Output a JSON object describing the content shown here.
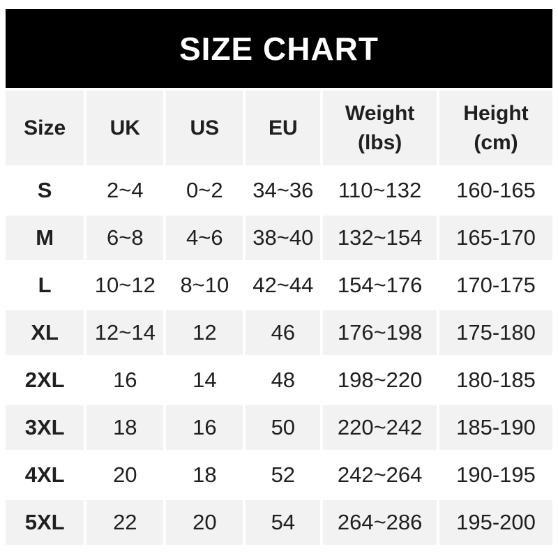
{
  "title": "SIZE CHART",
  "colors": {
    "banner_bg": "#000000",
    "banner_text": "#ffffff",
    "row_shade": "#f2f2f2",
    "row_plain": "#ffffff",
    "text": "#1f1f1f"
  },
  "table": {
    "columns": [
      "Size",
      "UK",
      "US",
      "EU",
      "Weight\n(lbs)",
      "Height\n(cm)"
    ],
    "rows": [
      {
        "cells": [
          "S",
          "2~4",
          "0~2",
          "34~36",
          "110~132",
          "160-165"
        ]
      },
      {
        "cells": [
          "M",
          "6~8",
          "4~6",
          "38~40",
          "132~154",
          "165-170"
        ]
      },
      {
        "cells": [
          "L",
          "10~12",
          "8~10",
          "42~44",
          "154~176",
          "170-175"
        ]
      },
      {
        "cells": [
          "XL",
          "12~14",
          "12",
          "46",
          "176~198",
          "175-180"
        ]
      },
      {
        "cells": [
          "2XL",
          "16",
          "14",
          "48",
          "198~220",
          "180-185"
        ]
      },
      {
        "cells": [
          "3XL",
          "18",
          "16",
          "50",
          "220~242",
          "185-190"
        ]
      },
      {
        "cells": [
          "4XL",
          "20",
          "18",
          "52",
          "242~264",
          "190-195"
        ]
      },
      {
        "cells": [
          "5XL",
          "22",
          "20",
          "54",
          "264~286",
          "195-200"
        ]
      }
    ]
  }
}
